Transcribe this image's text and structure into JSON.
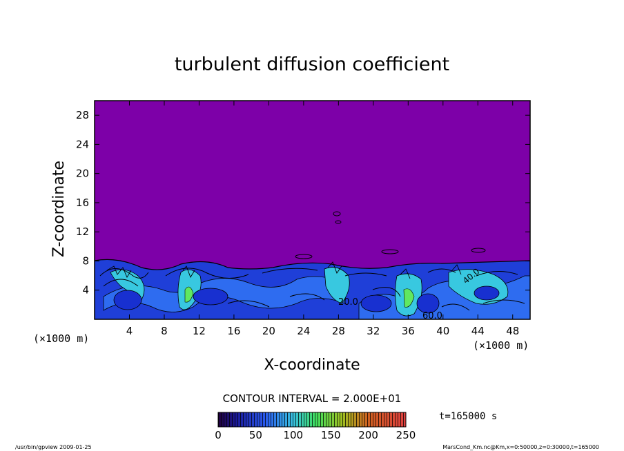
{
  "chart_data": {
    "type": "heatmap",
    "title": "turbulent diffusion coefficient",
    "xlabel": "X-coordinate",
    "ylabel": "Z-coordinate",
    "x_unit": "(×1000 m)",
    "y_unit": "(×1000 m)",
    "xlim": [
      0,
      50
    ],
    "ylim": [
      0,
      30
    ],
    "x_ticks": [
      4,
      8,
      12,
      16,
      20,
      24,
      28,
      32,
      36,
      40,
      44,
      48
    ],
    "y_ticks": [
      4,
      8,
      12,
      16,
      20,
      24,
      28
    ],
    "contour_interval_label": "CONTOUR INTERVAL = 2.000E+01",
    "colorbar": {
      "min": 0,
      "max": 250,
      "ticks": [
        0,
        50,
        100,
        150,
        200,
        250
      ]
    },
    "contour_labels": [
      "20.0",
      "60.0",
      "40.0"
    ],
    "time_label": "t=165000  s",
    "footer_left": "/usr/bin/gpview  2009-01-25",
    "footer_right": "MarsCond_Km.nc@Km,x=0:50000,z=0:30000,t=165000",
    "background_value": 0,
    "mixed_layer_top_km": 8,
    "colors": {
      "background_field": "#7d00a8",
      "low": "#1830d0",
      "mid": "#2e6cf0",
      "high": "#38c8e0",
      "peak": "#60e860"
    }
  }
}
